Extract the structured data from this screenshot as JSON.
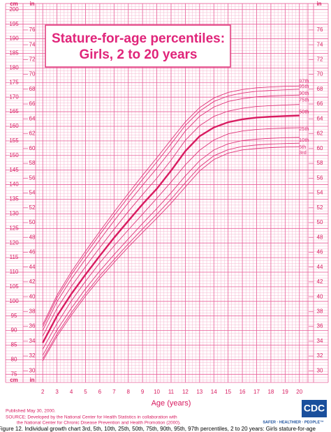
{
  "chart_data": {
    "type": "line",
    "title": "Stature-for-age percentiles:",
    "subtitle": "Girls, 2 to 20 years",
    "x_label": "Age (years)",
    "y_unit": "cm",
    "y2_unit": "in",
    "x": [
      2,
      3,
      4,
      5,
      6,
      7,
      8,
      9,
      10,
      11,
      12,
      13,
      14,
      15,
      16,
      17,
      18,
      19,
      20
    ],
    "xlim": [
      1.5,
      20.6
    ],
    "xticks": [
      2,
      3,
      4,
      5,
      6,
      7,
      8,
      9,
      10,
      11,
      12,
      13,
      14,
      15,
      16,
      17,
      18,
      19,
      20
    ],
    "ylim": [
      72.2,
      202.1
    ],
    "yticks": [
      75,
      80,
      85,
      90,
      95,
      100,
      105,
      110,
      115,
      120,
      125,
      130,
      135,
      140,
      145,
      150,
      155,
      160,
      165,
      170,
      175,
      180,
      185,
      190,
      195,
      200
    ],
    "y2lim": [
      28.43,
      79.57
    ],
    "y2ticks": [
      30,
      32,
      34,
      36,
      38,
      40,
      42,
      44,
      46,
      48,
      50,
      52,
      54,
      56,
      58,
      60,
      62,
      64,
      66,
      68,
      70,
      72,
      74,
      76
    ],
    "grid": true,
    "color": "#e0357a",
    "series": [
      {
        "name": "97th",
        "color": "#e0357a",
        "values": [
          92.0,
          102.1,
          110.1,
          117.2,
          124.0,
          130.6,
          137.0,
          143.2,
          149.2,
          155.4,
          161.5,
          166.4,
          169.7,
          171.6,
          172.6,
          173.2,
          173.5,
          173.7,
          173.8
        ]
      },
      {
        "name": "95th",
        "color": "#e0357a",
        "values": [
          91.2,
          101.2,
          109.1,
          116.1,
          122.9,
          129.4,
          135.7,
          141.8,
          147.8,
          154.0,
          160.3,
          165.2,
          168.5,
          170.4,
          171.4,
          172.0,
          172.3,
          172.5,
          172.7
        ]
      },
      {
        "name": "90th",
        "color": "#e0357a",
        "values": [
          90.0,
          99.9,
          107.6,
          114.5,
          121.1,
          127.6,
          133.8,
          139.8,
          145.6,
          151.8,
          158.4,
          163.4,
          166.6,
          168.5,
          169.5,
          170.1,
          170.4,
          170.6,
          170.7
        ]
      },
      {
        "name": "75th",
        "color": "#e0357a",
        "values": [
          88.1,
          97.6,
          105.1,
          111.9,
          118.4,
          124.7,
          130.8,
          136.6,
          142.2,
          148.4,
          155.2,
          160.2,
          163.4,
          165.2,
          166.2,
          166.8,
          167.1,
          167.3,
          167.5
        ]
      },
      {
        "name": "50th",
        "color": "#d81b60",
        "values": [
          85.8,
          95.0,
          102.5,
          109.2,
          115.6,
          121.8,
          127.6,
          133.3,
          138.6,
          144.8,
          151.5,
          156.6,
          159.6,
          161.4,
          162.4,
          163.0,
          163.3,
          163.5,
          163.7
        ]
      },
      {
        "name": "25th",
        "color": "#e0357a",
        "values": [
          83.6,
          92.4,
          100.1,
          106.9,
          113.2,
          119.0,
          124.5,
          129.9,
          135.3,
          140.9,
          146.8,
          151.8,
          155.3,
          157.4,
          158.4,
          158.9,
          159.2,
          159.4,
          159.5
        ]
      },
      {
        "name": "10th",
        "color": "#e0357a",
        "values": [
          81.5,
          90.2,
          97.6,
          104.3,
          110.4,
          116.0,
          121.4,
          126.7,
          131.8,
          137.2,
          143.0,
          148.2,
          151.9,
          154.0,
          155.1,
          155.6,
          155.9,
          156.1,
          156.2
        ]
      },
      {
        "name": "5th",
        "color": "#e0357a",
        "values": [
          80.3,
          88.8,
          96.1,
          102.7,
          108.8,
          114.3,
          119.7,
          124.8,
          129.8,
          135.0,
          140.7,
          146.1,
          149.9,
          152.0,
          153.1,
          153.6,
          153.9,
          154.1,
          154.2
        ]
      },
      {
        "name": "3rd",
        "color": "#e0357a",
        "values": [
          79.6,
          88.0,
          95.2,
          101.8,
          107.8,
          113.3,
          118.6,
          123.6,
          128.5,
          133.6,
          139.2,
          144.7,
          148.6,
          150.8,
          151.9,
          152.4,
          152.7,
          152.9,
          153.0
        ]
      }
    ]
  },
  "footer": {
    "published": "Published May 30, 2000.",
    "source_1": "SOURCE: Developed by the National Center for Health Statistics in collaboration with",
    "source_2": "the National Center for Chronic Disease Prevention and Health Promotion (2000).",
    "logo": "CDC",
    "logo_tagline": "SAFER · HEALTHIER · PEOPLE™",
    "caption": "Figure 12. Individual growth chart 3rd, 5th, 10th, 25th, 50th, 75th, 90th, 95th, 97th percentiles, 2 to 20 years: Girls stature-for-age"
  }
}
